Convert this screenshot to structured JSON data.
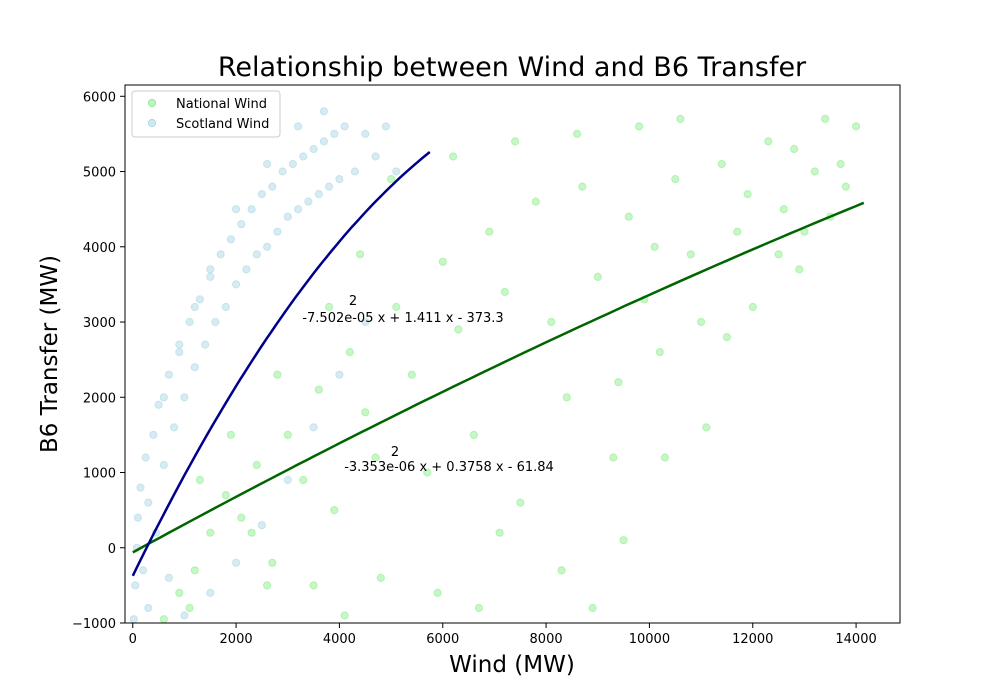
{
  "chart_data": {
    "type": "scatter",
    "title": "Relationship between Wind and B6 Transfer",
    "xlabel": "Wind (MW)",
    "ylabel": "B6 Transfer (MW)",
    "xlim": [
      -150,
      14850
    ],
    "ylim": [
      -1000,
      6150
    ],
    "xticks": [
      0,
      2000,
      4000,
      6000,
      8000,
      10000,
      12000,
      14000
    ],
    "yticks": [
      -1000,
      0,
      1000,
      2000,
      3000,
      4000,
      5000,
      6000
    ],
    "x_tick_labels": [
      "0",
      "2000",
      "4000",
      "6000",
      "8000",
      "10000",
      "12000",
      "14000"
    ],
    "y_tick_labels": [
      "−1000",
      "0",
      "1000",
      "2000",
      "3000",
      "4000",
      "5000",
      "6000"
    ],
    "grid": false,
    "legend_position": "top-left",
    "series": [
      {
        "name": "National Wind",
        "color": "#90ee90",
        "fit": {
          "label_exp": "2",
          "label": "-3.353e-06 x + 0.3758 x - 61.84",
          "coefficients": [
            -3.353e-06,
            0.3758,
            -61.84
          ],
          "x_range": [
            0,
            14150
          ],
          "line_color": "#006400"
        },
        "points": [
          [
            600,
            -950
          ],
          [
            900,
            -600
          ],
          [
            1200,
            -300
          ],
          [
            1500,
            200
          ],
          [
            1800,
            700
          ],
          [
            2100,
            400
          ],
          [
            2400,
            1100
          ],
          [
            2700,
            -200
          ],
          [
            3000,
            1500
          ],
          [
            3300,
            900
          ],
          [
            3600,
            2100
          ],
          [
            3900,
            500
          ],
          [
            4200,
            2600
          ],
          [
            4500,
            1800
          ],
          [
            4800,
            -400
          ],
          [
            5100,
            3200
          ],
          [
            5400,
            2300
          ],
          [
            5700,
            1000
          ],
          [
            6000,
            3800
          ],
          [
            6300,
            2900
          ],
          [
            6600,
            1500
          ],
          [
            6900,
            4200
          ],
          [
            7200,
            3400
          ],
          [
            7500,
            600
          ],
          [
            7800,
            4600
          ],
          [
            8100,
            3000
          ],
          [
            8400,
            2000
          ],
          [
            8700,
            4800
          ],
          [
            9000,
            3600
          ],
          [
            9300,
            1200
          ],
          [
            9600,
            4400
          ],
          [
            9900,
            3300
          ],
          [
            10200,
            2600
          ],
          [
            10500,
            4900
          ],
          [
            10800,
            3900
          ],
          [
            11100,
            1600
          ],
          [
            11400,
            5100
          ],
          [
            11700,
            4200
          ],
          [
            12000,
            3200
          ],
          [
            12300,
            5400
          ],
          [
            12600,
            4500
          ],
          [
            12900,
            3700
          ],
          [
            13200,
            5000
          ],
          [
            13500,
            4400
          ],
          [
            13800,
            4800
          ],
          [
            14000,
            5600
          ],
          [
            1100,
            -800
          ],
          [
            2300,
            200
          ],
          [
            3500,
            -500
          ],
          [
            4700,
            1200
          ],
          [
            5900,
            -600
          ],
          [
            7100,
            200
          ],
          [
            8300,
            -300
          ],
          [
            9500,
            100
          ],
          [
            10100,
            4000
          ],
          [
            11000,
            3000
          ],
          [
            11900,
            4700
          ],
          [
            12800,
            5300
          ],
          [
            13400,
            5700
          ],
          [
            5000,
            4900
          ],
          [
            6200,
            5200
          ],
          [
            7400,
            5400
          ],
          [
            8600,
            5500
          ],
          [
            9800,
            5600
          ],
          [
            10600,
            5700
          ],
          [
            4400,
            3900
          ],
          [
            3800,
            3200
          ],
          [
            2800,
            2300
          ],
          [
            1900,
            1500
          ],
          [
            1300,
            900
          ],
          [
            2600,
            -500
          ],
          [
            4100,
            -900
          ],
          [
            6700,
            -800
          ],
          [
            8900,
            -800
          ],
          [
            9400,
            2200
          ],
          [
            10300,
            1200
          ],
          [
            11500,
            2800
          ],
          [
            12500,
            3900
          ],
          [
            13000,
            4200
          ],
          [
            13700,
            5100
          ]
        ]
      },
      {
        "name": "Scotland Wind",
        "color": "#add8e6",
        "fit": {
          "label_exp": "2",
          "label": "-7.502e-05 x + 1.411 x - 373.3",
          "coefficients": [
            -7.502e-05,
            1.411,
            -373.3
          ],
          "x_range": [
            0,
            5750
          ],
          "line_color": "#00008b"
        },
        "points": [
          [
            20,
            -950
          ],
          [
            50,
            -500
          ],
          [
            80,
            0
          ],
          [
            100,
            400
          ],
          [
            150,
            800
          ],
          [
            200,
            -300
          ],
          [
            250,
            1200
          ],
          [
            300,
            600
          ],
          [
            400,
            1500
          ],
          [
            450,
            200
          ],
          [
            500,
            1900
          ],
          [
            600,
            1100
          ],
          [
            700,
            2300
          ],
          [
            800,
            1600
          ],
          [
            900,
            2700
          ],
          [
            1000,
            2000
          ],
          [
            1100,
            3000
          ],
          [
            1200,
            2400
          ],
          [
            1300,
            3300
          ],
          [
            1400,
            2700
          ],
          [
            1500,
            3600
          ],
          [
            1600,
            3000
          ],
          [
            1700,
            3900
          ],
          [
            1800,
            3200
          ],
          [
            1900,
            4100
          ],
          [
            2000,
            3500
          ],
          [
            2100,
            4300
          ],
          [
            2200,
            3700
          ],
          [
            2300,
            4500
          ],
          [
            2400,
            3900
          ],
          [
            2500,
            4700
          ],
          [
            2600,
            4000
          ],
          [
            2700,
            4800
          ],
          [
            2800,
            4200
          ],
          [
            2900,
            5000
          ],
          [
            3000,
            4400
          ],
          [
            3100,
            5100
          ],
          [
            3200,
            4500
          ],
          [
            3300,
            5200
          ],
          [
            3400,
            4600
          ],
          [
            3500,
            5300
          ],
          [
            3600,
            4700
          ],
          [
            3700,
            5400
          ],
          [
            3800,
            4800
          ],
          [
            3900,
            5500
          ],
          [
            4000,
            4900
          ],
          [
            4100,
            5600
          ],
          [
            4300,
            5000
          ],
          [
            4500,
            5500
          ],
          [
            4700,
            5200
          ],
          [
            4900,
            5600
          ],
          [
            5100,
            5000
          ],
          [
            1000,
            -900
          ],
          [
            1500,
            -600
          ],
          [
            2000,
            -200
          ],
          [
            2500,
            300
          ],
          [
            3000,
            900
          ],
          [
            3500,
            1600
          ],
          [
            4000,
            2300
          ],
          [
            4500,
            3000
          ],
          [
            600,
            2000
          ],
          [
            900,
            2600
          ],
          [
            1200,
            3200
          ],
          [
            1500,
            3700
          ],
          [
            2000,
            4500
          ],
          [
            2600,
            5100
          ],
          [
            3200,
            5600
          ],
          [
            3700,
            5800
          ],
          [
            300,
            -800
          ],
          [
            700,
            -400
          ]
        ]
      }
    ]
  }
}
